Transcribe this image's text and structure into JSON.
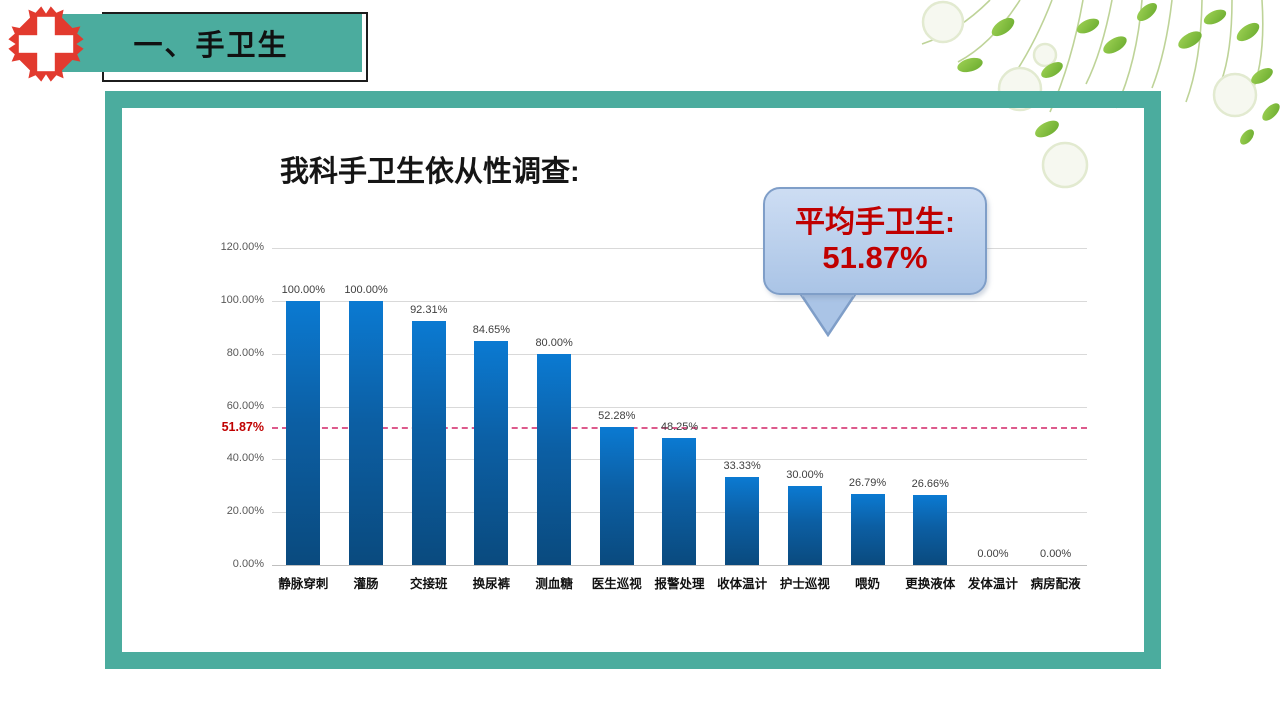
{
  "header": {
    "title": "一、手卫生"
  },
  "logo": {
    "icon": "hospital-red-cross",
    "color": "#E23A2E"
  },
  "main_chart_title": "我科手卫生依从性调查:",
  "callout": {
    "line1": "平均手卫生:",
    "line2": "51.87%",
    "text_color": "#C00000",
    "fill": "#AAC4E6"
  },
  "colors": {
    "frame_teal": "#4BAC9E",
    "bar_top": "#0B7AD2",
    "bar_bottom": "#0A4A7E",
    "gridline": "#D9D9D9",
    "average_line": "#DD5A8C",
    "red_text": "#C00000",
    "leaf_green": "#7DBC3E"
  },
  "chart_data": {
    "type": "bar",
    "title": "我科手卫生依从性调查:",
    "categories": [
      "静脉穿刺",
      "灌肠",
      "交接班",
      "换尿裤",
      "测血糖",
      "医生巡视",
      "报警处理",
      "收体温计",
      "护士巡视",
      "喂奶",
      "更换液体",
      "发体温计",
      "病房配液"
    ],
    "values": [
      100.0,
      100.0,
      92.31,
      84.65,
      80.0,
      52.28,
      48.25,
      33.33,
      30.0,
      26.79,
      26.66,
      0.0,
      0.0
    ],
    "data_labels": [
      "100.00%",
      "100.00%",
      "92.31%",
      "84.65%",
      "80.00%",
      "52.28%",
      "48.25%",
      "33.33%",
      "30.00%",
      "26.79%",
      "26.66%",
      "0.00%",
      "0.00%"
    ],
    "xlabel": "",
    "ylabel": "",
    "ylim": [
      0,
      120
    ],
    "grid": true,
    "legend": false,
    "yticks": [
      {
        "value": 0,
        "label": "0.00%"
      },
      {
        "value": 20,
        "label": "20.00%"
      },
      {
        "value": 40,
        "label": "40.00%"
      },
      {
        "value": 60,
        "label": "60.00%"
      },
      {
        "value": 80,
        "label": "80.00%"
      },
      {
        "value": 100,
        "label": "100.00%"
      },
      {
        "value": 120,
        "label": "120.00%"
      }
    ],
    "average_line": {
      "value": 51.87,
      "label": "51.87%"
    }
  }
}
